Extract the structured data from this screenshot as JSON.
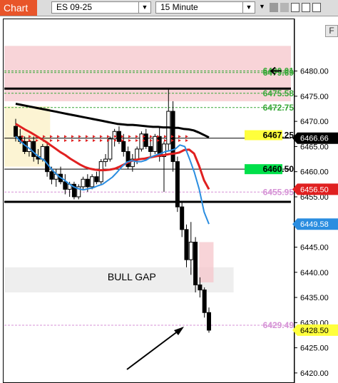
{
  "toolbar": {
    "tab_label": "Chart",
    "instrument": "ES 09-25",
    "timeframe": "15 Minute"
  },
  "chart_data": {
    "type": "candlestick",
    "symbol": "ES 09-25",
    "interval": "15 Minute",
    "ylim": [
      6418,
      6491
    ],
    "y_ticks": [
      6420,
      6425,
      6430,
      6435,
      6440,
      6445,
      6450,
      6455,
      6460,
      6465,
      6470,
      6475,
      6480
    ],
    "y_tick_labels": [
      "6420.00",
      "6425.00",
      "6430.00",
      "6435.00",
      "6440.00",
      "6445.00",
      "6450.00",
      "6455.00",
      "6460.00",
      "6465.00",
      "6470.00",
      "6475.00",
      "6480.00"
    ],
    "axis_color": "#000000",
    "level_labels": [
      {
        "value": 6480.01,
        "text": "6480.01",
        "color": "#3aa83a"
      },
      {
        "value": 6479.69,
        "text": "6479.69",
        "color": "#3aa83a"
      },
      {
        "value": 6475.58,
        "text": "6475.58",
        "color": "#3aa83a"
      },
      {
        "value": 6472.75,
        "text": "6472.75",
        "color": "#3aa83a"
      },
      {
        "value": 6467.25,
        "text": "6467.25",
        "color": "#000000",
        "bg": "#ffff3c"
      },
      {
        "value": 6460.5,
        "text": "6460.50",
        "color": "#000000",
        "bg": "#00e04a"
      },
      {
        "value": 6455.95,
        "text": "6455.95",
        "color": "#d590d5"
      },
      {
        "value": 6429.49,
        "text": "6429.49",
        "color": "#d590d5"
      }
    ],
    "price_badges": [
      {
        "value": 6466.66,
        "text": "6466.66",
        "color": "#ffffff",
        "bg": "#000000"
      },
      {
        "value": 6456.5,
        "text": "6456.50",
        "color": "#ffffff",
        "bg": "#e02020"
      },
      {
        "value": 6449.58,
        "text": "6449.58",
        "color": "#ffffff",
        "bg": "#2a8de0"
      },
      {
        "value": 6428.5,
        "text": "6428.50",
        "color": "#000000",
        "bg": "#ffff3c"
      }
    ],
    "horizontal_lines": [
      {
        "value": 6476.5,
        "style": "solid",
        "color": "#000000",
        "width": 3
      },
      {
        "value": 6454.0,
        "style": "solid",
        "color": "#000000",
        "width": 3
      },
      {
        "value": 6466.66,
        "style": "solid",
        "color": "#000000",
        "width": 1
      },
      {
        "value": 6460.5,
        "style": "solid",
        "color": "#000000",
        "width": 1
      },
      {
        "value": 6480.01,
        "style": "dashed",
        "color": "#3aa83a",
        "width": 1
      },
      {
        "value": 6479.69,
        "style": "dashed",
        "color": "#3aa83a",
        "width": 1
      },
      {
        "value": 6475.58,
        "style": "dashed",
        "color": "#3aa83a",
        "width": 1
      },
      {
        "value": 6472.75,
        "style": "dashed",
        "color": "#3aa83a",
        "width": 1
      },
      {
        "value": 6455.95,
        "style": "dashed",
        "color": "#d590d5",
        "width": 1
      },
      {
        "value": 6429.49,
        "style": "dashed",
        "color": "#d590d5",
        "width": 1
      }
    ],
    "zones": [
      {
        "label": "",
        "y_low": 6474.0,
        "y_high": 6485.0,
        "x_start": 0.0,
        "x_end": 1.0,
        "color": "#f5c6cb"
      },
      {
        "label": "",
        "y_low": 6461.0,
        "y_high": 6473.0,
        "x_start": 0.0,
        "x_end": 0.16,
        "color": "#fbf0c4"
      },
      {
        "label": "",
        "y_low": 6436.0,
        "y_high": 6441.0,
        "x_start": 0.0,
        "x_end": 0.8,
        "color": "#e8e8e8"
      },
      {
        "label": "",
        "y_low": 6438.0,
        "y_high": 6446.0,
        "x_start": 0.68,
        "x_end": 0.73,
        "color": "#f5c6cb"
      }
    ],
    "annotations": [
      {
        "text": "BULL GAP",
        "x": 0.46,
        "y": 6439.0
      }
    ],
    "candles": [
      [
        6469.0,
        6470.5,
        6466.0,
        6467.0
      ],
      [
        6467.0,
        6468.5,
        6465.5,
        6466.0
      ],
      [
        6466.0,
        6467.0,
        6463.5,
        6464.0
      ],
      [
        6464.0,
        6466.5,
        6463.0,
        6466.0
      ],
      [
        6466.0,
        6467.0,
        6462.0,
        6463.0
      ],
      [
        6463.0,
        6464.5,
        6461.5,
        6462.5
      ],
      [
        6462.5,
        6465.5,
        6462.0,
        6465.0
      ],
      [
        6465.0,
        6466.0,
        6459.0,
        6460.0
      ],
      [
        6460.0,
        6461.0,
        6457.5,
        6458.5
      ],
      [
        6458.5,
        6460.5,
        6457.0,
        6459.5
      ],
      [
        6459.5,
        6461.0,
        6457.5,
        6458.0
      ],
      [
        6458.0,
        6459.5,
        6455.5,
        6456.5
      ],
      [
        6456.5,
        6458.0,
        6455.0,
        6457.5
      ],
      [
        6457.5,
        6458.0,
        6454.5,
        6455.0
      ],
      [
        6455.0,
        6457.5,
        6454.5,
        6457.0
      ],
      [
        6457.0,
        6459.0,
        6456.5,
        6458.5
      ],
      [
        6458.5,
        6459.5,
        6456.0,
        6457.0
      ],
      [
        6457.0,
        6459.5,
        6456.5,
        6459.0
      ],
      [
        6459.0,
        6460.0,
        6457.5,
        6458.0
      ],
      [
        6458.0,
        6462.5,
        6457.5,
        6462.0
      ],
      [
        6462.0,
        6463.5,
        6461.0,
        6462.5
      ],
      [
        6462.5,
        6467.0,
        6462.0,
        6466.5
      ],
      [
        6466.5,
        6468.5,
        6465.0,
        6468.0
      ],
      [
        6468.0,
        6469.0,
        6465.5,
        6466.0
      ],
      [
        6466.0,
        6467.5,
        6463.0,
        6464.0
      ],
      [
        6464.0,
        6465.0,
        6460.5,
        6461.0
      ],
      [
        6461.0,
        6463.5,
        6460.0,
        6462.5
      ],
      [
        6462.5,
        6465.0,
        6461.5,
        6464.5
      ],
      [
        6464.5,
        6468.0,
        6464.0,
        6467.5
      ],
      [
        6467.5,
        6468.5,
        6464.5,
        6465.0
      ],
      [
        6465.0,
        6466.5,
        6463.0,
        6464.0
      ],
      [
        6464.0,
        6467.5,
        6463.5,
        6467.0
      ],
      [
        6467.0,
        6469.0,
        6462.0,
        6463.0
      ],
      [
        6463.0,
        6466.0,
        6456.0,
        6465.5
      ],
      [
        6465.5,
        6476.5,
        6464.0,
        6472.0
      ],
      [
        6472.0,
        6474.0,
        6460.0,
        6462.0
      ],
      [
        6462.0,
        6463.0,
        6452.0,
        6453.0
      ],
      [
        6453.0,
        6454.0,
        6447.0,
        6448.5
      ],
      [
        6448.5,
        6449.5,
        6441.0,
        6442.5
      ],
      [
        6442.5,
        6450.0,
        6439.5,
        6446.0
      ],
      [
        6446.0,
        6447.0,
        6436.0,
        6437.5
      ],
      [
        6437.5,
        6439.0,
        6435.0,
        6436.5
      ],
      [
        6436.5,
        6437.0,
        6431.0,
        6432.0
      ],
      [
        6432.0,
        6433.0,
        6428.0,
        6428.5
      ]
    ],
    "series": [
      {
        "values": [
          6473.5,
          6473.3,
          6473.1,
          6472.9,
          6472.7,
          6472.5,
          6472.3,
          6472.1,
          6471.9,
          6471.7,
          6471.5,
          6471.3,
          6471.1,
          6470.9,
          6470.7,
          6470.5,
          6470.3,
          6470.1,
          6469.9,
          6469.7,
          6469.5,
          6469.4,
          6469.3,
          6469.3,
          6469.2,
          6469.1,
          6469.0,
          6468.9,
          6468.9,
          6468.8,
          6468.8,
          6468.7,
          6468.7,
          6468.5,
          6468.4,
          6468.2,
          6467.8,
          6467.3,
          6466.8
        ],
        "color": "#000000",
        "width": 3
      },
      {
        "values": [
          6469.5,
          6468.9,
          6468.3,
          6467.8,
          6467.2,
          6466.6,
          6466.0,
          6465.3,
          6464.6,
          6463.9,
          6463.3,
          6462.6,
          6462.0,
          6461.4,
          6460.9,
          6460.6,
          6460.4,
          6460.3,
          6460.3,
          6460.4,
          6460.6,
          6461.0,
          6461.5,
          6462.0,
          6462.3,
          6462.5,
          6462.6,
          6462.8,
          6463.0,
          6463.2,
          6463.3,
          6463.5,
          6463.6,
          6463.8,
          6464.3,
          6464.4,
          6463.6,
          6461.2,
          6458.3,
          6456.5
        ],
        "color": "#e02020",
        "width": 3
      },
      {
        "values": [
          6467.0,
          6466.0,
          6465.2,
          6464.5,
          6463.6,
          6462.8,
          6462.2,
          6461.0,
          6459.9,
          6459.0,
          6458.4,
          6457.6,
          6457.0,
          6456.6,
          6456.4,
          6456.6,
          6456.8,
          6457.2,
          6457.5,
          6458.2,
          6458.9,
          6459.9,
          6461.0,
          6461.9,
          6462.2,
          6462.0,
          6462.0,
          6462.3,
          6462.9,
          6463.3,
          6463.6,
          6464.0,
          6464.2,
          6464.5,
          6465.3,
          6465.0,
          6462.5,
          6459.8,
          6456.5,
          6452.0,
          6449.6
        ],
        "color": "#2a8de0",
        "width": 2
      }
    ]
  }
}
